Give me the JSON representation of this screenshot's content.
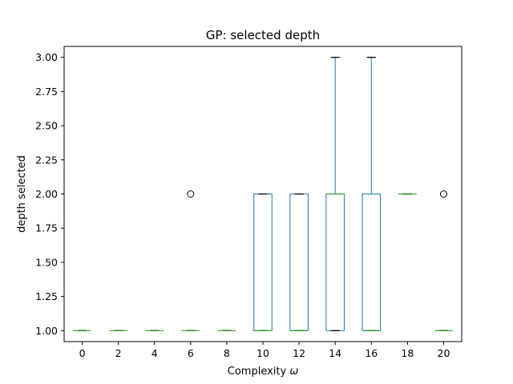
{
  "chart_data": {
    "type": "boxplot",
    "title": "GP: selected depth",
    "xlabel_prefix": "Complexity ",
    "xlabel_symbol": "ω",
    "ylabel": "depth selected",
    "ylim": [
      0.92,
      3.08
    ],
    "yticks": [
      "1.00",
      "1.25",
      "1.50",
      "1.75",
      "2.00",
      "2.25",
      "2.50",
      "2.75",
      "3.00"
    ],
    "ytick_values": [
      1.0,
      1.25,
      1.5,
      1.75,
      2.0,
      2.25,
      2.5,
      2.75,
      3.0
    ],
    "categories": [
      "0",
      "2",
      "4",
      "6",
      "8",
      "10",
      "12",
      "14",
      "16",
      "18",
      "20"
    ],
    "boxes": [
      {
        "whislo": 1,
        "q1": 1,
        "med": 1,
        "q3": 1,
        "whishi": 1,
        "fliers": []
      },
      {
        "whislo": 1,
        "q1": 1,
        "med": 1,
        "q3": 1,
        "whishi": 1,
        "fliers": []
      },
      {
        "whislo": 1,
        "q1": 1,
        "med": 1,
        "q3": 1,
        "whishi": 1,
        "fliers": []
      },
      {
        "whislo": 1,
        "q1": 1,
        "med": 1,
        "q3": 1,
        "whishi": 1,
        "fliers": [
          2
        ]
      },
      {
        "whislo": 1,
        "q1": 1,
        "med": 1,
        "q3": 1,
        "whishi": 1,
        "fliers": []
      },
      {
        "whislo": 1,
        "q1": 1,
        "med": 1,
        "q3": 2,
        "whishi": 2,
        "fliers": []
      },
      {
        "whislo": 1,
        "q1": 1,
        "med": 1,
        "q3": 2,
        "whishi": 2,
        "fliers": []
      },
      {
        "whislo": 1,
        "q1": 1,
        "med": 2,
        "q3": 2,
        "whishi": 3,
        "fliers": []
      },
      {
        "whislo": 1,
        "q1": 1,
        "med": 1,
        "q3": 2,
        "whishi": 3,
        "fliers": []
      },
      {
        "whislo": 2,
        "q1": 2,
        "med": 2,
        "q3": 2,
        "whishi": 2,
        "fliers": []
      },
      {
        "whislo": 1,
        "q1": 1,
        "med": 1,
        "q3": 1,
        "whishi": 1,
        "fliers": [
          2
        ]
      }
    ],
    "colors": {
      "box": "#1f77b4",
      "median": "#2ca02c",
      "whisker_cap": "#000000",
      "axes": "#000000"
    },
    "grid": false
  }
}
